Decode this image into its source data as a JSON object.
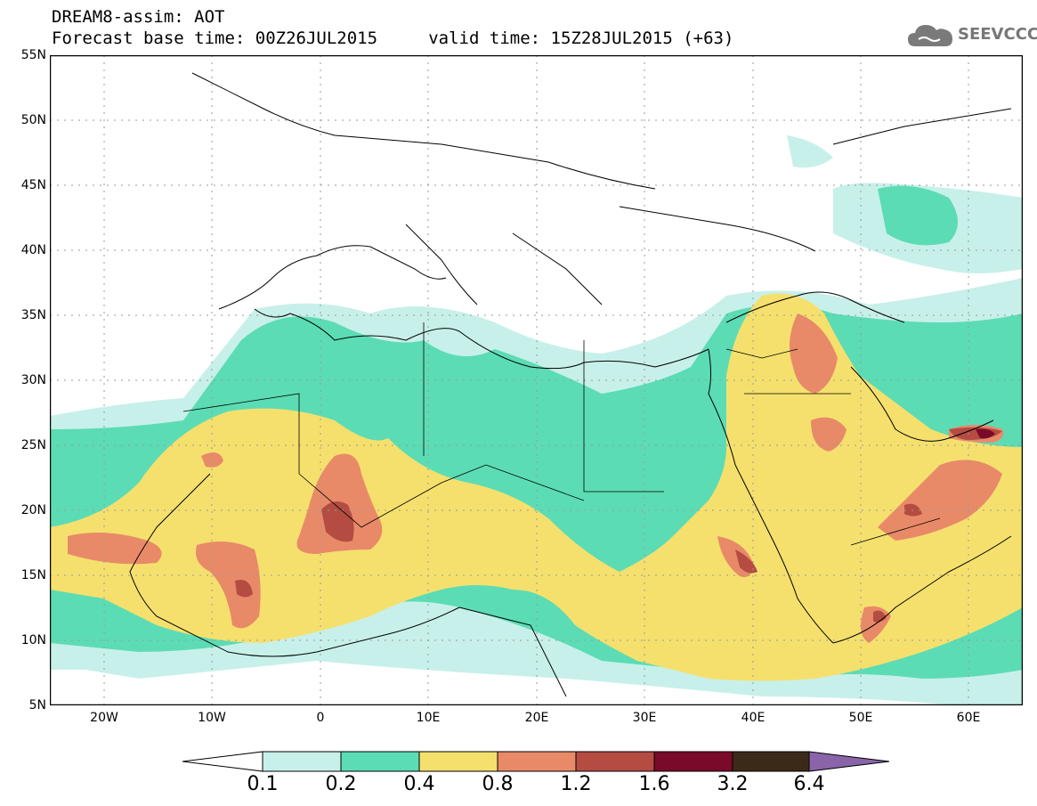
{
  "header": {
    "line1": "DREAM8-assim: AOT",
    "line2": "Forecast base time: 00Z26JUL2015     valid time: 15Z28JUL2015 (+63)"
  },
  "logo": {
    "text": "SEEVCCC",
    "icon": "cloud-icon"
  },
  "map": {
    "lat_labels": [
      "55N",
      "50N",
      "45N",
      "40N",
      "35N",
      "30N",
      "25N",
      "20N",
      "15N",
      "10N",
      "5N"
    ],
    "lon_labels": [
      "20W",
      "10W",
      "0",
      "10E",
      "20E",
      "30E",
      "40E",
      "50E",
      "60E"
    ],
    "extent": {
      "lon_min": -25,
      "lon_max": 65,
      "lat_min": 5,
      "lat_max": 55
    }
  },
  "colorbar": {
    "labels": [
      "0.1",
      "0.2",
      "0.4",
      "0.8",
      "1.2",
      "1.6",
      "3.2",
      "6.4"
    ],
    "colors": [
      "#ffffff",
      "#c8f0ea",
      "#5cdcb4",
      "#f5e06e",
      "#e88a68",
      "#b44c42",
      "#7a0a2a",
      "#3c2a18",
      "#8a64a8"
    ]
  }
}
